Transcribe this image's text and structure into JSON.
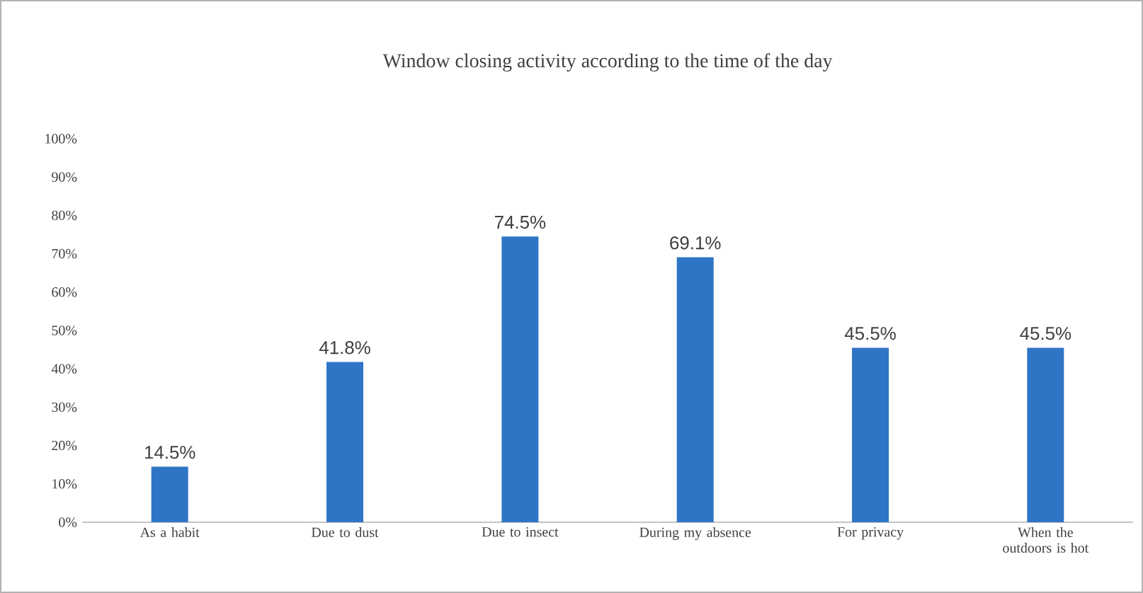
{
  "chart_data": {
    "type": "bar",
    "title": "Window closing activity according to the time of the day",
    "categories": [
      "As a habit",
      "Due to dust",
      "Due to insect",
      "During my absence",
      "For privacy",
      "When the outdoors is hot"
    ],
    "values": [
      14.5,
      41.8,
      74.5,
      69.1,
      45.5,
      45.5
    ],
    "value_labels": [
      "14.5%",
      "41.8%",
      "74.5%",
      "69.1%",
      "45.5%",
      "45.5%"
    ],
    "color": "#2e75c6",
    "ylim": [
      0,
      100
    ],
    "yticks": [
      {
        "value": 0,
        "label": "0%"
      },
      {
        "value": 10,
        "label": "10%"
      },
      {
        "value": 20,
        "label": "20%"
      },
      {
        "value": 30,
        "label": "30%"
      },
      {
        "value": 40,
        "label": "40%"
      },
      {
        "value": 50,
        "label": "50%"
      },
      {
        "value": 60,
        "label": "60%"
      },
      {
        "value": 70,
        "label": "70%"
      },
      {
        "value": 80,
        "label": "80%"
      },
      {
        "value": 90,
        "label": "90%"
      },
      {
        "value": 100,
        "label": "100%"
      }
    ],
    "grid": false
  }
}
